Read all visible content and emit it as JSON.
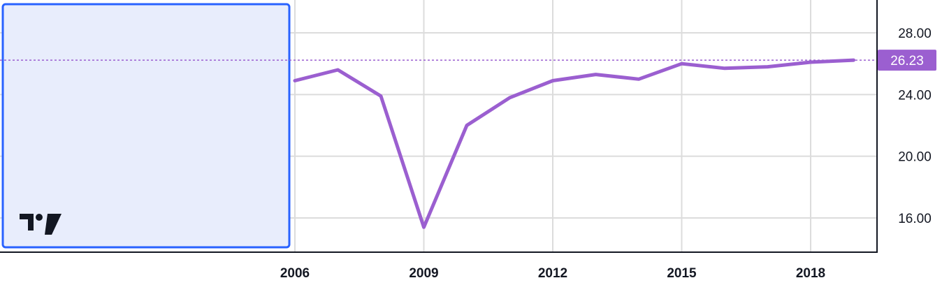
{
  "colors": {
    "series": "#9b5fd0",
    "grid": "#dcdcdc",
    "axis": "#131722",
    "selection_fill": "#e8edfc",
    "selection_border": "#2962ff",
    "last_value_bg": "#9b5fd0",
    "last_value_text": "#ffffff"
  },
  "chart_data": {
    "type": "line",
    "title": "",
    "xlabel": "",
    "ylabel": "",
    "x_ticks": [
      "2006",
      "2009",
      "2012",
      "2015",
      "2018"
    ],
    "y_ticks": [
      "16.00",
      "20.00",
      "24.00",
      "28.00"
    ],
    "xlim": [
      2005.9,
      2020.6
    ],
    "ylim": [
      13.8,
      29.1
    ],
    "grid": true,
    "series": [
      {
        "values": [
          {
            "x": 2006,
            "y": 24.9
          },
          {
            "x": 2007,
            "y": 25.6
          },
          {
            "x": 2008,
            "y": 23.9
          },
          {
            "x": 2009,
            "y": 15.4
          },
          {
            "x": 2010,
            "y": 22.0
          },
          {
            "x": 2011,
            "y": 23.8
          },
          {
            "x": 2012,
            "y": 24.9
          },
          {
            "x": 2013,
            "y": 25.3
          },
          {
            "x": 2014,
            "y": 25.0
          },
          {
            "x": 2015,
            "y": 26.0
          },
          {
            "x": 2016,
            "y": 25.7
          },
          {
            "x": 2017,
            "y": 25.8
          },
          {
            "x": 2018,
            "y": 26.1
          },
          {
            "x": 2019,
            "y": 26.23
          }
        ]
      }
    ],
    "last_value_label": "26.23",
    "last_value": 26.23
  },
  "logo": {
    "text": "TV"
  }
}
